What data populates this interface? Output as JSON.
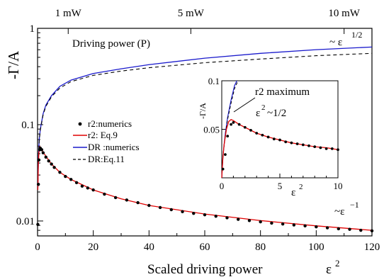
{
  "chart_data": {
    "type": "line",
    "x_scale": "linear",
    "y_scale": "log",
    "xlim": [
      0,
      120
    ],
    "ylim": [
      0.007,
      1
    ],
    "xlabel": "Scaled driving power",
    "xlabel_symbol": "ε",
    "xlabel_sup": "2",
    "ylabel": "-Γ/A",
    "x_ticks": [
      "0",
      "20",
      "40",
      "60",
      "80",
      "100",
      "120"
    ],
    "y_ticks": [
      "0.01",
      "0.1",
      "1"
    ],
    "top_axis": {
      "label": "Driving power (P)",
      "ticks": [
        {
          "label": "1 mW",
          "x": 11
        },
        {
          "label": "5 mW",
          "x": 55
        },
        {
          "label": "10 mW",
          "x": 110
        }
      ]
    },
    "annotations": {
      "upper_prefix": "~ ε",
      "upper_sup": "1/2",
      "lower_prefix": "~ε",
      "lower_sup": "−1"
    },
    "legend": {
      "position": "left-middle",
      "entries": [
        {
          "key": "numerics",
          "label": "r2:numerics",
          "color": "#000000",
          "style": "dots"
        },
        {
          "key": "eq9",
          "label": "r2: Eq.9",
          "color": "#e00000",
          "style": "solid"
        },
        {
          "key": "drnum",
          "label": "DR :numerics",
          "color": "#1a1acc",
          "style": "solid"
        },
        {
          "key": "eq11",
          "label": "DR:Eq.11",
          "color": "#000000",
          "style": "dashed"
        }
      ]
    },
    "series": [
      {
        "name": "DR :numerics",
        "color": "#1a1acc",
        "points": [
          [
            0.1,
            0.022
          ],
          [
            0.3,
            0.045
          ],
          [
            0.6,
            0.07
          ],
          [
            1,
            0.09
          ],
          [
            2,
            0.13
          ],
          [
            3,
            0.16
          ],
          [
            5,
            0.2
          ],
          [
            8,
            0.25
          ],
          [
            12,
            0.29
          ],
          [
            20,
            0.34
          ],
          [
            30,
            0.38
          ],
          [
            40,
            0.42
          ],
          [
            60,
            0.49
          ],
          [
            80,
            0.55
          ],
          [
            100,
            0.6
          ],
          [
            120,
            0.64
          ]
        ]
      },
      {
        "name": "DR:Eq.11",
        "color": "#000000",
        "points": [
          [
            0.1,
            0.022
          ],
          [
            0.3,
            0.044
          ],
          [
            0.6,
            0.068
          ],
          [
            1,
            0.088
          ],
          [
            2,
            0.127
          ],
          [
            3,
            0.155
          ],
          [
            5,
            0.195
          ],
          [
            8,
            0.24
          ],
          [
            12,
            0.28
          ],
          [
            20,
            0.325
          ],
          [
            30,
            0.36
          ],
          [
            40,
            0.39
          ],
          [
            60,
            0.44
          ],
          [
            80,
            0.48
          ],
          [
            100,
            0.52
          ],
          [
            120,
            0.55
          ]
        ]
      },
      {
        "name": "r2: Eq.9",
        "color": "#e00000",
        "points": [
          [
            0.1,
            0.021
          ],
          [
            0.3,
            0.04
          ],
          [
            0.5,
            0.052
          ],
          [
            0.8,
            0.059
          ],
          [
            1,
            0.058
          ],
          [
            1.5,
            0.055
          ],
          [
            2,
            0.052
          ],
          [
            3,
            0.047
          ],
          [
            5,
            0.039
          ],
          [
            8,
            0.032
          ],
          [
            12,
            0.027
          ],
          [
            20,
            0.021
          ],
          [
            30,
            0.017
          ],
          [
            40,
            0.0145
          ],
          [
            60,
            0.0118
          ],
          [
            80,
            0.0101
          ],
          [
            100,
            0.0089
          ],
          [
            120,
            0.008
          ]
        ]
      },
      {
        "name": "r2:numerics",
        "color": "#000000",
        "points": [
          [
            0.1,
            0.0092
          ],
          [
            0.3,
            0.024
          ],
          [
            0.5,
            0.043
          ],
          [
            0.8,
            0.055
          ],
          [
            1,
            0.057
          ],
          [
            1.5,
            0.055
          ],
          [
            2,
            0.051
          ],
          [
            3,
            0.046
          ],
          [
            4,
            0.042
          ],
          [
            5,
            0.039
          ],
          [
            6,
            0.036
          ],
          [
            8,
            0.032
          ],
          [
            10,
            0.029
          ],
          [
            12,
            0.027
          ],
          [
            14,
            0.025
          ],
          [
            16,
            0.023
          ],
          [
            18,
            0.022
          ],
          [
            20,
            0.021
          ],
          [
            24,
            0.019
          ],
          [
            28,
            0.0175
          ],
          [
            32,
            0.0165
          ],
          [
            36,
            0.0155
          ],
          [
            40,
            0.0145
          ],
          [
            44,
            0.0138
          ],
          [
            48,
            0.0131
          ],
          [
            52,
            0.0125
          ],
          [
            56,
            0.012
          ],
          [
            60,
            0.0116
          ],
          [
            64,
            0.0112
          ],
          [
            68,
            0.0108
          ],
          [
            72,
            0.0104
          ],
          [
            76,
            0.0101
          ],
          [
            80,
            0.0098
          ],
          [
            84,
            0.0095
          ],
          [
            88,
            0.0093
          ],
          [
            92,
            0.0091
          ],
          [
            96,
            0.0089
          ],
          [
            100,
            0.0087
          ],
          [
            104,
            0.0085
          ],
          [
            108,
            0.0083
          ],
          [
            112,
            0.0082
          ],
          [
            116,
            0.008
          ],
          [
            120,
            0.0079
          ]
        ]
      }
    ],
    "inset": {
      "xlim": [
        0,
        10
      ],
      "ylim": [
        0,
        0.1
      ],
      "x_ticks": [
        "0",
        "5",
        "10"
      ],
      "y_ticks": [
        "0.05",
        "0.1"
      ],
      "ylabel": "-Γ/A",
      "xlabel_symbol": "ε",
      "xlabel_sup": "2",
      "annotation_maximum": "r2 maximum",
      "annotation_eps_prefix": "ε",
      "annotation_eps_sup": "2",
      "annotation_eps_suffix": "~1/2",
      "series": [
        {
          "key": "drnum",
          "color": "#1a1acc",
          "points": [
            [
              0,
              0
            ],
            [
              0.1,
              0.022
            ],
            [
              0.3,
              0.045
            ],
            [
              0.5,
              0.062
            ],
            [
              0.8,
              0.08
            ],
            [
              1.1,
              0.095
            ],
            [
              1.3,
              0.1
            ]
          ]
        },
        {
          "key": "eq11",
          "color": "#000000",
          "points": [
            [
              0,
              0
            ],
            [
              0.1,
              0.022
            ],
            [
              0.3,
              0.044
            ],
            [
              0.5,
              0.06
            ],
            [
              0.8,
              0.077
            ],
            [
              1.1,
              0.092
            ],
            [
              1.4,
              0.1
            ]
          ]
        },
        {
          "key": "eq9",
          "color": "#e00000",
          "points": [
            [
              0,
              0
            ],
            [
              0.1,
              0.021
            ],
            [
              0.2,
              0.034
            ],
            [
              0.4,
              0.05
            ],
            [
              0.6,
              0.058
            ],
            [
              0.8,
              0.06
            ],
            [
              1,
              0.059
            ],
            [
              1.5,
              0.055
            ],
            [
              2,
              0.052
            ],
            [
              3,
              0.046
            ],
            [
              4,
              0.042
            ],
            [
              5,
              0.039
            ],
            [
              6,
              0.036
            ],
            [
              7,
              0.034
            ],
            [
              8,
              0.032
            ],
            [
              9,
              0.031
            ],
            [
              10,
              0.029
            ]
          ]
        },
        {
          "key": "numerics",
          "color": "#000000",
          "points": [
            [
              0.1,
              0.009
            ],
            [
              0.3,
              0.024
            ],
            [
              0.5,
              0.043
            ],
            [
              0.8,
              0.055
            ],
            [
              1,
              0.057
            ],
            [
              1.5,
              0.055
            ],
            [
              2,
              0.052
            ],
            [
              2.5,
              0.049
            ],
            [
              3,
              0.046
            ],
            [
              3.5,
              0.044
            ],
            [
              4,
              0.042
            ],
            [
              4.5,
              0.04
            ],
            [
              5,
              0.039
            ],
            [
              5.5,
              0.037
            ],
            [
              6,
              0.036
            ],
            [
              6.5,
              0.035
            ],
            [
              7,
              0.034
            ],
            [
              7.5,
              0.033
            ],
            [
              8,
              0.032
            ],
            [
              8.5,
              0.031
            ],
            [
              9,
              0.03
            ],
            [
              9.5,
              0.03
            ],
            [
              10,
              0.029
            ]
          ]
        }
      ]
    }
  }
}
